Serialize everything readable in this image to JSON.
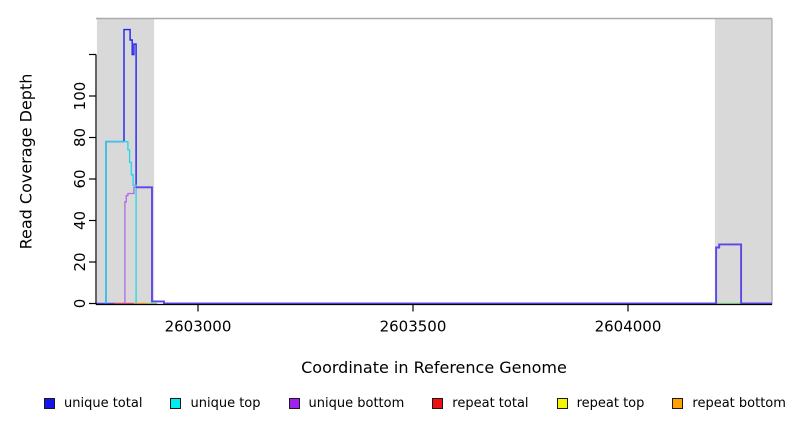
{
  "figure": {
    "xlabel": "Coordinate in Reference Genome",
    "ylabel": "Read Coverage Depth"
  },
  "legend": {
    "items": [
      {
        "label": "unique total",
        "color": "#1414ee"
      },
      {
        "label": "unique top",
        "color": "#00eeee"
      },
      {
        "label": "unique bottom",
        "color": "#a020f0"
      },
      {
        "label": "repeat total",
        "color": "#ee1111"
      },
      {
        "label": "repeat top",
        "color": "#f5f500"
      },
      {
        "label": "repeat bottom",
        "color": "#ffa200"
      }
    ]
  },
  "chart_data": {
    "type": "line",
    "title": "",
    "xlabel": "Coordinate in Reference Genome",
    "ylabel": "Read Coverage Depth",
    "xlim": [
      2602763,
      2604335
    ],
    "ylim": [
      0,
      137
    ],
    "grid": false,
    "legend_position": "bottom",
    "x_ticks": [
      {
        "value": 2603000,
        "label": "2603000"
      },
      {
        "value": 2603500,
        "label": "2603500"
      },
      {
        "value": 2604000,
        "label": "2604000"
      }
    ],
    "y_ticks": [
      {
        "value": 0,
        "label": "0"
      },
      {
        "value": 20,
        "label": "20"
      },
      {
        "value": 40,
        "label": "40"
      },
      {
        "value": 60,
        "label": "60"
      },
      {
        "value": 80,
        "label": "80"
      },
      {
        "value": 100,
        "label": "100"
      },
      {
        "value": 120,
        "label": ""
      }
    ],
    "shaded_regions": [
      {
        "name": "masked-region-left",
        "x_start": 2602765,
        "x_end": 2602898,
        "color": "#d9d9d9"
      },
      {
        "name": "masked-region-right",
        "x_start": 2604202,
        "x_end": 2604335,
        "color": "#d9d9d9"
      }
    ],
    "series": [
      {
        "name": "baseline-left-overlap",
        "color": "#5b46e8",
        "width": 1.5,
        "points": [
          [
            2602763,
            0
          ],
          [
            2602807,
            0
          ]
        ]
      },
      {
        "name": "repeat-total-baseline",
        "color": "#e0506e",
        "width": 1.5,
        "points": [
          [
            2602805,
            0
          ],
          [
            2602851,
            0
          ]
        ]
      },
      {
        "name": "repeat-bottom-baseline",
        "color": "#ff9e2c",
        "width": 1.5,
        "points": [
          [
            2602851,
            0
          ],
          [
            2602881,
            0
          ]
        ]
      },
      {
        "name": "top-strand-baseline-blend-left",
        "color": "#8fd68f",
        "width": 1.5,
        "points": [
          [
            2602881,
            0
          ],
          [
            2602905,
            0
          ]
        ]
      },
      {
        "name": "top-strand-baseline-blend-right",
        "color": "#8fd68f",
        "width": 1.5,
        "points": [
          [
            2604198,
            0
          ],
          [
            2604274,
            0
          ]
        ]
      },
      {
        "name": "unique-total-peak",
        "color": "#2222ee",
        "width": 1.4,
        "points": [
          [
            2602786,
            0
          ],
          [
            2602786,
            78
          ],
          [
            2602828,
            78
          ],
          [
            2602828,
            132
          ],
          [
            2602842,
            132
          ],
          [
            2602842,
            127
          ],
          [
            2602847,
            127
          ],
          [
            2602847,
            120
          ],
          [
            2602851,
            120
          ],
          [
            2602851,
            125
          ],
          [
            2602856,
            125
          ],
          [
            2602856,
            56
          ]
        ]
      },
      {
        "name": "unique-top",
        "color": "#22d6e8",
        "width": 1.3,
        "points": [
          [
            2602786,
            0
          ],
          [
            2602786,
            78
          ],
          [
            2602837,
            78
          ],
          [
            2602837,
            74
          ],
          [
            2602841,
            74
          ],
          [
            2602841,
            68
          ],
          [
            2602845,
            68
          ],
          [
            2602845,
            62
          ],
          [
            2602849,
            62
          ],
          [
            2602849,
            57
          ],
          [
            2602856,
            57
          ],
          [
            2602856,
            0
          ]
        ]
      },
      {
        "name": "unique-bottom",
        "color": "#b266e8",
        "width": 1.3,
        "points": [
          [
            2602830,
            0
          ],
          [
            2602830,
            49
          ],
          [
            2602833,
            49
          ],
          [
            2602833,
            52
          ],
          [
            2602837,
            52
          ],
          [
            2602837,
            53
          ],
          [
            2602851,
            53
          ],
          [
            2602851,
            56
          ],
          [
            2602858,
            56
          ]
        ]
      },
      {
        "name": "total-bottom-overlap",
        "color": "#5b46e8",
        "width": 1.9,
        "points": [
          [
            2602856,
            56
          ],
          [
            2602893,
            56
          ],
          [
            2602893,
            1
          ],
          [
            2602921,
            1
          ],
          [
            2602921,
            0
          ],
          [
            2604205,
            0
          ],
          [
            2604205,
            27
          ],
          [
            2604212,
            27
          ],
          [
            2604212,
            28.5
          ],
          [
            2604263,
            28.5
          ],
          [
            2604263,
            0
          ],
          [
            2604335,
            0
          ]
        ]
      }
    ]
  },
  "layout_note": {
    "top_border_color": "#ababab"
  }
}
